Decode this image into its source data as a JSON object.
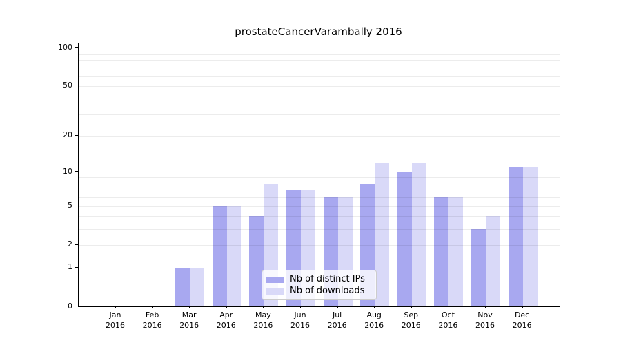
{
  "title": "prostateCancerVarambally 2016",
  "legend": {
    "items": [
      {
        "label": "Nb of distinct IPs",
        "series": "ips"
      },
      {
        "label": "Nb of downloads",
        "series": "downloads"
      }
    ]
  },
  "colors": {
    "ips": "#a8a8f0",
    "downloads": "#d9d9f8",
    "axis": "#000000",
    "major_grid": "rgba(0,0,0,0.24)",
    "minor_grid": "rgba(0,0,0,0.075)",
    "background": "#ffffff"
  },
  "chart_data": {
    "type": "bar",
    "title": "prostateCancerVarambally 2016",
    "categories": [
      "Jan",
      "Feb",
      "Mar",
      "Apr",
      "May",
      "Jun",
      "Jul",
      "Aug",
      "Sep",
      "Oct",
      "Nov",
      "Dec"
    ],
    "year_label": "2016",
    "series": [
      {
        "name": "Nb of distinct IPs",
        "color": "#a8a8f0",
        "values": [
          0,
          0,
          1,
          5,
          4,
          7,
          6,
          8,
          10,
          6,
          3,
          11
        ]
      },
      {
        "name": "Nb of downloads",
        "color": "#d9d9f8",
        "values": [
          0,
          0,
          1,
          5,
          8,
          7,
          6,
          12,
          12,
          6,
          4,
          11
        ]
      }
    ],
    "xlabel": "",
    "ylabel": "",
    "yscale": "log10(1+v)",
    "ylim_top_value": 108,
    "y_tick_values": [
      0,
      1,
      2,
      5,
      10,
      20,
      50,
      100
    ],
    "y_tick_labels": [
      "0",
      "1",
      "2",
      "5",
      "10",
      "20",
      "50",
      "100"
    ],
    "grid_major_values": [
      1,
      10,
      100
    ],
    "grid_minor_values": [
      2,
      3,
      4,
      5,
      6,
      7,
      8,
      9,
      20,
      30,
      40,
      50,
      60,
      70,
      80,
      90
    ],
    "grid": "on",
    "grid_above_bars": true,
    "legend_position": "lower-center-inside"
  }
}
